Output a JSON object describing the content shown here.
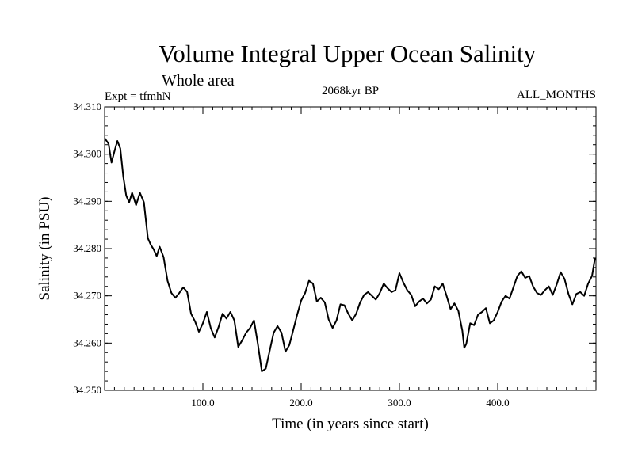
{
  "chart_data": {
    "type": "line",
    "title": "Volume Integral Upper Ocean Salinity",
    "subtitle": "Whole area",
    "experiment": "Expt = tfmhN",
    "epoch": "2068kyr BP",
    "months": "ALL_MONTHS",
    "xlabel": "Time (in years since start)",
    "ylabel": "Salinity (in PSU)",
    "xlim": [
      0,
      500
    ],
    "ylim": [
      34.25,
      34.31
    ],
    "xticks": [
      100,
      200,
      300,
      400
    ],
    "xtick_labels": [
      "100.0",
      "200.0",
      "300.0",
      "400.0"
    ],
    "yticks": [
      34.25,
      34.26,
      34.27,
      34.28,
      34.29,
      34.3,
      34.31
    ],
    "ytick_labels": [
      "34.250",
      "34.260",
      "34.270",
      "34.280",
      "34.290",
      "34.300",
      "34.310"
    ],
    "grid": false,
    "series": [
      {
        "name": "Salinity",
        "x": [
          0,
          4,
          7,
          10,
          13,
          16,
          19,
          22,
          25,
          28,
          32,
          36,
          40,
          44,
          47,
          50,
          53,
          56,
          60,
          64,
          68,
          72,
          76,
          80,
          84,
          88,
          92,
          96,
          100,
          104,
          108,
          112,
          116,
          120,
          124,
          128,
          132,
          136,
          140,
          144,
          148,
          152,
          156,
          160,
          164,
          168,
          172,
          176,
          180,
          184,
          188,
          192,
          196,
          200,
          204,
          208,
          212,
          216,
          220,
          224,
          228,
          232,
          236,
          240,
          244,
          248,
          252,
          256,
          260,
          264,
          268,
          272,
          276,
          280,
          284,
          288,
          292,
          296,
          300,
          304,
          308,
          312,
          316,
          320,
          324,
          328,
          332,
          336,
          340,
          344,
          348,
          352,
          356,
          360,
          364,
          366,
          368,
          372,
          376,
          380,
          384,
          388,
          392,
          396,
          400,
          404,
          408,
          412,
          416,
          420,
          424,
          428,
          432,
          436,
          440,
          444,
          448,
          452,
          456,
          460,
          464,
          468,
          472,
          476,
          480,
          484,
          488,
          492,
          496,
          499
        ],
        "values": [
          34.3034,
          34.3022,
          34.2982,
          34.3006,
          34.3028,
          34.3012,
          34.2952,
          34.2912,
          34.2898,
          34.2918,
          34.2892,
          34.2918,
          34.2898,
          34.2822,
          34.2808,
          34.2798,
          34.2784,
          34.2804,
          34.2782,
          34.2732,
          34.2706,
          34.2696,
          34.2706,
          34.2718,
          34.2708,
          34.2662,
          34.2646,
          34.2624,
          34.2642,
          34.2666,
          34.2632,
          34.2612,
          34.2634,
          34.2662,
          34.2652,
          34.2666,
          34.2648,
          34.2592,
          34.2606,
          34.2622,
          34.2632,
          34.2648,
          34.2598,
          34.254,
          34.2546,
          34.2584,
          34.2622,
          34.2636,
          34.2622,
          34.2582,
          34.2596,
          34.2628,
          34.266,
          34.269,
          34.2706,
          34.2732,
          34.2726,
          34.2688,
          34.2696,
          34.2686,
          34.265,
          34.2632,
          34.2648,
          34.2682,
          34.268,
          34.2662,
          34.2648,
          34.2662,
          34.2686,
          34.2702,
          34.2708,
          34.27,
          34.2692,
          34.2706,
          34.2726,
          34.2716,
          34.2708,
          34.2712,
          34.2748,
          34.2728,
          34.2712,
          34.2702,
          34.2678,
          34.2688,
          34.2694,
          34.2684,
          34.2692,
          34.272,
          34.2714,
          34.2726,
          34.27,
          34.2672,
          34.2684,
          34.2668,
          34.2626,
          34.259,
          34.2598,
          34.2642,
          34.2638,
          34.266,
          34.2666,
          34.2674,
          34.2642,
          34.2648,
          34.2666,
          34.2688,
          34.27,
          34.2694,
          34.2718,
          34.2742,
          34.2752,
          34.2738,
          34.2742,
          34.272,
          34.2706,
          34.2702,
          34.2712,
          34.272,
          34.2702,
          34.2724,
          34.275,
          34.2736,
          34.2704,
          34.2682,
          34.2704,
          34.2708,
          34.27,
          34.2726,
          34.2742,
          34.278
        ]
      }
    ]
  },
  "colors": {
    "line": "#000000",
    "axis": "#000000",
    "background": "#ffffff"
  }
}
